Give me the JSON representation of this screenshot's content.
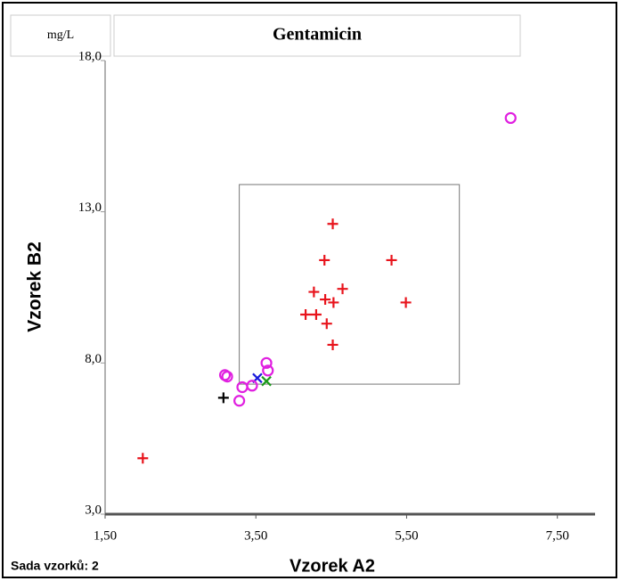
{
  "chart_data": {
    "type": "scatter",
    "title": "Gentamicin",
    "unit": "mg/L",
    "x_label": "Vzorek A2",
    "y_label": "Vzorek B2",
    "footnote": "Sada vzorků: 2",
    "xlim": [
      1.5,
      8.0
    ],
    "ylim": [
      3.0,
      18.5
    ],
    "xticks": [
      {
        "value": 1.5,
        "label": "1,50"
      },
      {
        "value": 3.5,
        "label": "3,50"
      },
      {
        "value": 5.5,
        "label": "5,50"
      },
      {
        "value": 7.5,
        "label": "7,50"
      }
    ],
    "yticks": [
      {
        "value": 3.0,
        "label": "3,0"
      },
      {
        "value": 8.0,
        "label": "8,0"
      },
      {
        "value": 13.0,
        "label": "13,0"
      },
      {
        "value": 18.0,
        "label": "18,0"
      }
    ],
    "region": {
      "x": [
        3.28,
        6.2
      ],
      "y": [
        7.3,
        13.9
      ]
    },
    "series": [
      {
        "marker": "plus",
        "color": "#e8141c",
        "x": [
          2.0,
          4.52,
          4.41,
          5.3,
          4.27,
          4.65,
          4.42,
          4.53,
          5.49,
          4.16,
          4.3,
          4.44,
          4.52
        ],
        "values": [
          4.85,
          12.6,
          11.4,
          11.4,
          10.35,
          10.45,
          10.1,
          10.0,
          10.0,
          9.6,
          9.6,
          9.3,
          8.6
        ]
      },
      {
        "marker": "plus",
        "color": "#000000",
        "x": [
          3.07
        ],
        "values": [
          6.85
        ]
      },
      {
        "marker": "cross",
        "color": "#1a1adc",
        "x": [
          3.52
        ],
        "values": [
          7.5
        ]
      },
      {
        "marker": "cross",
        "color": "#1a9a1a",
        "x": [
          3.64
        ],
        "values": [
          7.4
        ]
      },
      {
        "marker": "circle",
        "color": "#e020e0",
        "x": [
          6.88,
          3.09,
          3.12,
          3.32,
          3.28,
          3.45,
          3.64,
          3.66
        ],
        "values": [
          16.1,
          7.6,
          7.55,
          7.2,
          6.75,
          7.25,
          8.0,
          7.75
        ]
      }
    ]
  }
}
